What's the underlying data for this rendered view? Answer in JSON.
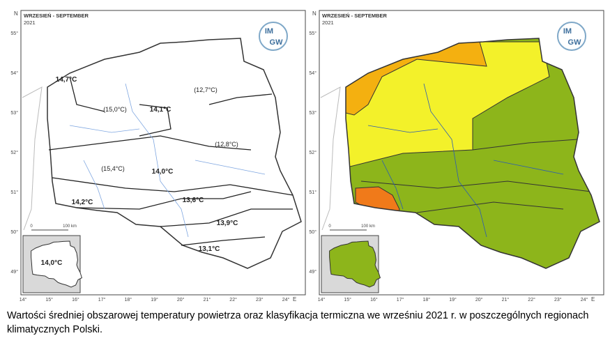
{
  "maps": [
    {
      "header": "WRZESIEŃ - SEPTEMBER",
      "year": "2021",
      "logo": [
        "IM",
        "GW"
      ],
      "regions": [
        "14,7°C",
        "(12,7°C)",
        "(15,0°C)",
        "14,1°C",
        "(12,8°C)",
        "(15,4°C)",
        "14,0°C",
        "13,6°C",
        "14,2°C",
        "13,9°C",
        "13,1°C"
      ],
      "inset_label": "14,0°C"
    },
    {
      "header": "WRZESIEŃ - SEPTEMBER",
      "year": "2021",
      "logo": [
        "IM",
        "GW"
      ]
    }
  ],
  "lat_ticks": [
    "55°",
    "54°",
    "53°",
    "52°",
    "51°",
    "50°",
    "49°"
  ],
  "lon_ticks": [
    "14°",
    "15°",
    "16°",
    "17°",
    "18°",
    "19°",
    "20°",
    "21°",
    "22°",
    "23°",
    "24°"
  ],
  "north": "N",
  "east": "E",
  "scale": {
    "start": "0",
    "end": "100 km"
  },
  "caption": "Wartości średniej obszarowej temperatury powietrza oraz klasyfikacja termiczna we wrześniu 2021 r. w poszczególnych regionach klimatycznych Polski."
}
